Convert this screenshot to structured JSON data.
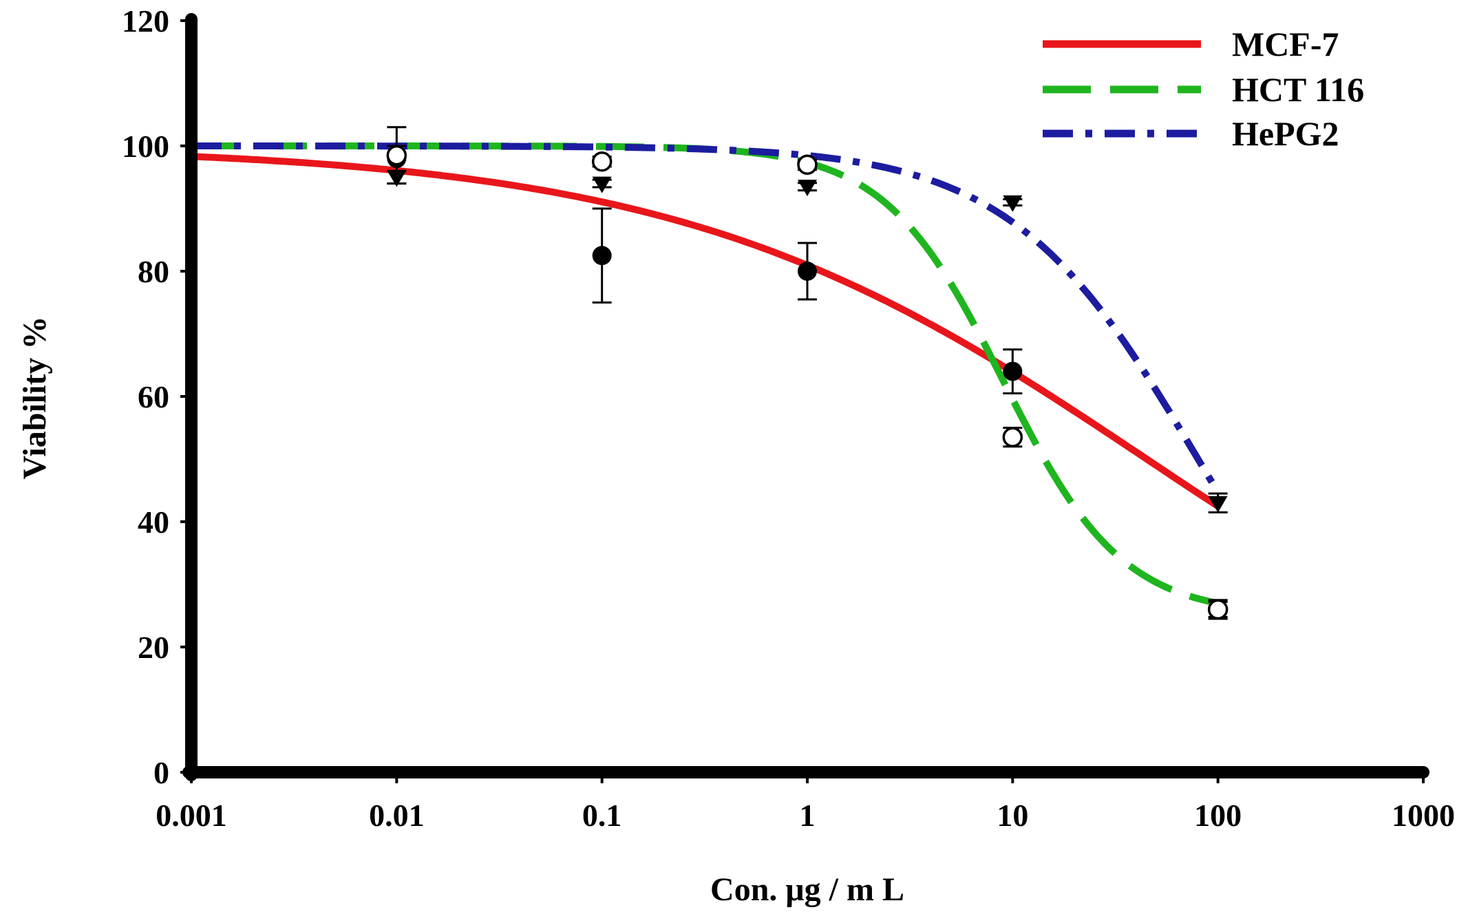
{
  "chart_data": {
    "type": "line",
    "title": "",
    "xlabel": "Con. μg / m L",
    "ylabel": "Viability %",
    "xscale": "log",
    "xlim": [
      0.001,
      1000
    ],
    "ylim": [
      0,
      120
    ],
    "xticks": [
      0.001,
      0.01,
      0.1,
      1,
      10,
      100,
      1000
    ],
    "xtick_labels": [
      "0.001",
      "0.01",
      "0.1",
      "1",
      "10",
      "100",
      "1000"
    ],
    "yticks": [
      0,
      20,
      40,
      60,
      80,
      100,
      120
    ],
    "ytick_labels": [
      "0",
      "20",
      "40",
      "60",
      "80",
      "100",
      "120"
    ],
    "grid": false,
    "legend_position": "top-right",
    "series": [
      {
        "name": "MCF-7",
        "color": "#e8161b",
        "dash": "solid",
        "marker": "filled-circle",
        "x": [
          0.01,
          0.1,
          1,
          10,
          100
        ],
        "y": [
          98,
          82.5,
          80,
          64,
          26
        ],
        "err": [
          2,
          7.5,
          4.5,
          3.5,
          1.5
        ],
        "fit": {
          "top": 100,
          "bottom": 0,
          "ec50": 45,
          "hill": 0.38
        }
      },
      {
        "name": "HCT 116",
        "color": "#1fb51f",
        "dash": "dashed",
        "marker": "open-circle",
        "x": [
          0.01,
          0.1,
          1,
          10,
          100
        ],
        "y": [
          98.5,
          97.5,
          97,
          53.5,
          26
        ],
        "err": [
          4.5,
          0.8,
          0.8,
          1.5,
          1.2
        ],
        "fit": {
          "top": 100,
          "bottom": 25,
          "ec50": 9,
          "hill": 1.5
        }
      },
      {
        "name": "HePG2",
        "color": "#1c1ca0",
        "dash": "dash-dot",
        "marker": "filled-triangle-down",
        "x": [
          0.01,
          0.1,
          1,
          10,
          100
        ],
        "y": [
          95,
          94,
          93.5,
          91,
          43
        ],
        "err": [
          1,
          0.6,
          0.6,
          0.5,
          1.5
        ],
        "fit": {
          "top": 100,
          "bottom": 0,
          "ec50": 80,
          "hill": 0.95
        }
      }
    ]
  }
}
